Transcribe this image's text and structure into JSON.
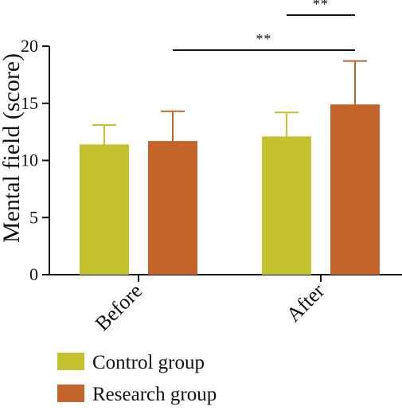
{
  "chart_data": {
    "type": "bar",
    "categories": [
      "Before",
      "After"
    ],
    "series": [
      {
        "name": "Control group",
        "color": "#c3c22e",
        "values": [
          11.4,
          12.1
        ],
        "errors": [
          1.7,
          2.1
        ]
      },
      {
        "name": "Research group",
        "color": "#c3652a",
        "values": [
          11.7,
          14.9
        ],
        "errors": [
          2.6,
          3.8
        ]
      }
    ],
    "ylabel": "Mental field (score)",
    "ylim": [
      0,
      20
    ],
    "yticks": [
      "0",
      "5",
      "10",
      "15",
      "20"
    ],
    "grid": false,
    "legend": "bottom-left",
    "significance": [
      {
        "label": "**",
        "from": {
          "category": 0,
          "series": 1
        },
        "to": {
          "category": 1,
          "series": 1
        }
      },
      {
        "label": "**",
        "from": {
          "category": 1,
          "series": 0
        },
        "to": {
          "category": 1,
          "series": 1
        }
      }
    ]
  }
}
